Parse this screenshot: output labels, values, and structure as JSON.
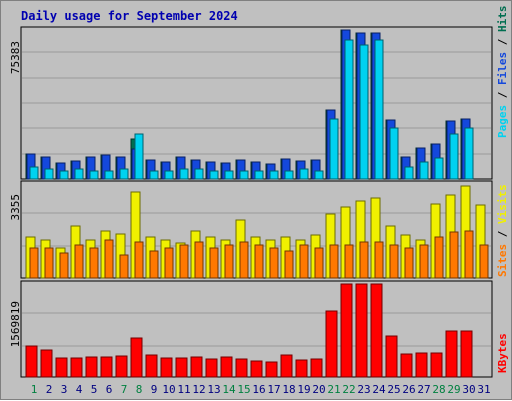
{
  "title": "Daily usage for September 2024",
  "colors": {
    "hits": "#006e50",
    "files": "#1448dc",
    "pages": "#00d2f0",
    "visits": "#f0f000",
    "sites": "#ff7800",
    "kbytes": "#ff0000",
    "weekend_label": "#008040",
    "weekday_label": "#000080"
  },
  "chart_data": [
    {
      "type": "bar",
      "panel": "hits-files-pages",
      "ymax_label": "75383",
      "ylim": [
        0,
        75383
      ],
      "right_label": {
        "pages": "Pages",
        "files": "Files",
        "hits": "Hits",
        "sep": " / "
      },
      "categories": [
        "1",
        "2",
        "3",
        "4",
        "5",
        "6",
        "7",
        "8",
        "9",
        "10",
        "11",
        "12",
        "13",
        "14",
        "15",
        "16",
        "17",
        "18",
        "19",
        "20",
        "21",
        "22",
        "23",
        "24",
        "25",
        "26",
        "27",
        "28",
        "29",
        "30",
        "31"
      ],
      "series": [
        {
          "name": "Hits",
          "values": [
            12800,
            11000,
            8000,
            9000,
            11000,
            12100,
            11300,
            20000,
            9800,
            8800,
            11000,
            9800,
            8800,
            8200,
            9800,
            8800,
            7500,
            10200,
            9000,
            9800,
            35000,
            75383,
            74000,
            74000,
            30000,
            11000,
            15800,
            17500,
            29500,
            30500,
            0
          ]
        },
        {
          "name": "Files",
          "values": [
            12800,
            11000,
            8000,
            9000,
            11000,
            12100,
            11300,
            15000,
            9800,
            8800,
            11000,
            9800,
            8800,
            8200,
            9800,
            8800,
            7500,
            10200,
            9000,
            9800,
            35000,
            75383,
            74000,
            74000,
            30000,
            11000,
            15800,
            17500,
            29500,
            30500,
            0
          ]
        },
        {
          "name": "Pages",
          "values": [
            6200,
            5000,
            4100,
            5000,
            4100,
            4100,
            5200,
            23000,
            4100,
            4100,
            5000,
            5000,
            4100,
            4100,
            4100,
            4100,
            4100,
            4100,
            5000,
            4100,
            30200,
            70500,
            68000,
            70500,
            26000,
            6200,
            8600,
            10500,
            23000,
            26000,
            0
          ]
        }
      ]
    },
    {
      "type": "bar",
      "panel": "visits-sites",
      "ymax_label": "3355",
      "ylim": [
        0,
        3355
      ],
      "right_label": {
        "sites": "Sites",
        "visits": "Visits",
        "sep": " / "
      },
      "series": [
        {
          "name": "Visits",
          "values": [
            1470,
            1370,
            1070,
            1870,
            1370,
            1670,
            1570,
            3070,
            1450,
            1370,
            1250,
            1670,
            1450,
            1370,
            2070,
            1450,
            1370,
            1450,
            1370,
            1550,
            2300,
            2550,
            2750,
            2870,
            1870,
            1550,
            1370,
            2650,
            2970,
            3300,
            2600
          ]
        },
        {
          "name": "Sites",
          "values": [
            1070,
            1070,
            880,
            1170,
            1070,
            1370,
            820,
            1270,
            970,
            1070,
            1170,
            1270,
            1070,
            1170,
            1270,
            1170,
            1070,
            970,
            1170,
            1070,
            1170,
            1170,
            1270,
            1270,
            1170,
            1070,
            1170,
            1470,
            1650,
            1670,
            1170
          ]
        }
      ]
    },
    {
      "type": "bar",
      "panel": "kbytes",
      "ymax_label": "1569819",
      "ylim": [
        0,
        1569819
      ],
      "right_label": {
        "kbytes": "KBytes"
      },
      "series": [
        {
          "name": "KBytes",
          "values": [
            520000,
            460000,
            320000,
            320000,
            340000,
            340000,
            360000,
            660000,
            370000,
            320000,
            320000,
            340000,
            300000,
            330000,
            300000,
            270000,
            250000,
            370000,
            280000,
            300000,
            1120000,
            1569819,
            1569819,
            1569819,
            700000,
            380000,
            410000,
            400000,
            770000,
            770000,
            0
          ]
        }
      ]
    }
  ]
}
